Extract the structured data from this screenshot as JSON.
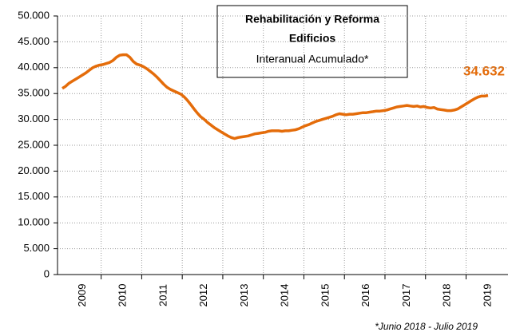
{
  "chart_data": {
    "type": "line",
    "title": "Rehabilitación y Reforma",
    "subtitle": "Edificios",
    "subtitle2": "Interanual Acumulado*",
    "annotation": "34.632",
    "footnote": "*Junio 2018 - Julio 2019",
    "categories": [
      null,
      null,
      null,
      null,
      null,
      null,
      "2009",
      null,
      null,
      null,
      null,
      null,
      null,
      null,
      null,
      null,
      null,
      null,
      "2010",
      null,
      null,
      null,
      null,
      null,
      null,
      null,
      null,
      null,
      null,
      null,
      "2011",
      null,
      null,
      null,
      null,
      null,
      null,
      null,
      null,
      null,
      null,
      null,
      "2012",
      null,
      null,
      null,
      null,
      null,
      null,
      null,
      null,
      null,
      null,
      null,
      "2013",
      null,
      null,
      null,
      null,
      null,
      null,
      null,
      null,
      null,
      null,
      null,
      "2014",
      null,
      null,
      null,
      null,
      null,
      null,
      null,
      null,
      null,
      null,
      null,
      "2015",
      null,
      null,
      null,
      null,
      null,
      null,
      null,
      null,
      null,
      null,
      null,
      "2016",
      null,
      null,
      null,
      null,
      null,
      null,
      null,
      null,
      null,
      null,
      null,
      "2017",
      null,
      null,
      null,
      null,
      null,
      null,
      null,
      null,
      null,
      null,
      null,
      "2018",
      null,
      null,
      null,
      null,
      null,
      null,
      null,
      null,
      null,
      null,
      null,
      "2019"
    ],
    "series": [
      {
        "name": "Rehabilitación y Reforma",
        "color": "#e46c0a",
        "values": [
          36000,
          36400,
          37000,
          37400,
          37800,
          38200,
          38600,
          39000,
          39500,
          40000,
          40300,
          40500,
          40600,
          40800,
          41000,
          41400,
          42000,
          42400,
          42500,
          42500,
          42000,
          41200,
          40700,
          40500,
          40200,
          39800,
          39300,
          38800,
          38200,
          37500,
          36800,
          36200,
          35800,
          35500,
          35200,
          34900,
          34400,
          33700,
          32900,
          32000,
          31200,
          30500,
          30000,
          29400,
          28900,
          28400,
          28000,
          27600,
          27200,
          26800,
          26500,
          26300,
          26500,
          26600,
          26700,
          26800,
          27000,
          27200,
          27300,
          27400,
          27500,
          27700,
          27800,
          27800,
          27800,
          27700,
          27800,
          27800,
          27900,
          28000,
          28200,
          28500,
          28800,
          29000,
          29300,
          29600,
          29800,
          30000,
          30200,
          30400,
          30600,
          30900,
          31100,
          31000,
          30900,
          31000,
          31000,
          31100,
          31200,
          31300,
          31300,
          31400,
          31500,
          31600,
          31600,
          31700,
          31800,
          32000,
          32200,
          32400,
          32500,
          32600,
          32700,
          32600,
          32500,
          32600,
          32400,
          32500,
          32300,
          32200,
          32300,
          32000,
          31900,
          31800,
          31700,
          31700,
          31800,
          32000,
          32400,
          32800,
          33200,
          33600,
          34000,
          34300,
          34500,
          34500,
          34632
        ]
      }
    ],
    "ylim": [
      0,
      50000
    ],
    "yticks": [
      0,
      {
        "value": 5000,
        "label": "5.000"
      },
      {
        "value": 10000,
        "label": "10.000"
      },
      {
        "value": 15000,
        "label": "15.000"
      },
      {
        "value": 20000,
        "label": "20.000"
      },
      {
        "value": 25000,
        "label": "25.000"
      },
      {
        "value": 30000,
        "label": "30.000"
      },
      {
        "value": 35000,
        "label": "35.000"
      },
      {
        "value": 40000,
        "label": "40.000"
      },
      {
        "value": 45000,
        "label": "45.000"
      },
      {
        "value": 50000,
        "label": "50.000"
      }
    ],
    "grid": true
  }
}
